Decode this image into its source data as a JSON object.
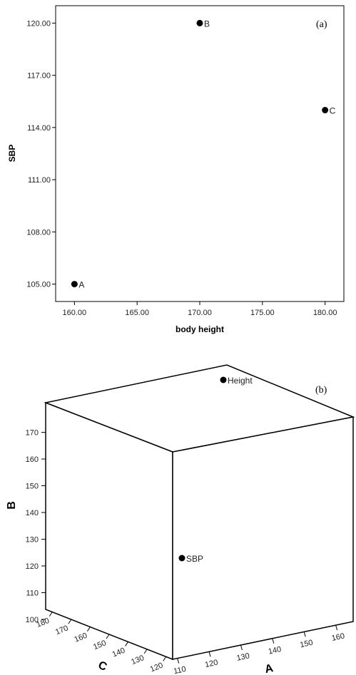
{
  "chart_data": [
    {
      "type": "scatter",
      "panel_label": "(a)",
      "xlabel": "body height",
      "ylabel": "SBP",
      "xlim": [
        158.5,
        181.5
      ],
      "ylim": [
        104.0,
        121.0
      ],
      "x_ticks": [
        "160.00",
        "165.00",
        "170.00",
        "175.00",
        "180.00"
      ],
      "y_ticks": [
        "105.00",
        "108.00",
        "111.00",
        "114.00",
        "117.00",
        "120.00"
      ],
      "points": [
        {
          "label": "A",
          "x": 160,
          "y": 105
        },
        {
          "label": "B",
          "x": 170,
          "y": 120
        },
        {
          "label": "C",
          "x": 180,
          "y": 115
        }
      ],
      "grid": false
    },
    {
      "type": "scatter",
      "subtype": "3d",
      "panel_label": "(b)",
      "xlabel": "A",
      "ylabel": "B",
      "zlabel": "C",
      "b_ticks": [
        "100",
        "110",
        "120",
        "130",
        "140",
        "150",
        "160",
        "170"
      ],
      "a_ticks": [
        "110",
        "120",
        "130",
        "140",
        "150",
        "160"
      ],
      "c_ticks": [
        "180",
        "170",
        "160",
        "150",
        "140",
        "130",
        "120"
      ],
      "points": [
        {
          "label": "Height",
          "a": 160,
          "b": 170,
          "c": 180
        },
        {
          "label": "SBP",
          "a": 105,
          "b": 120,
          "c": 115
        }
      ]
    }
  ]
}
